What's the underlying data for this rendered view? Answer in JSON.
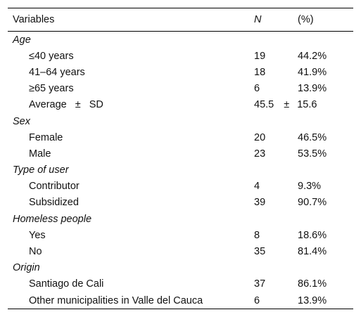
{
  "headers": {
    "variables": "Variables",
    "n": "N",
    "pct": "(%)"
  },
  "groups": [
    {
      "label": "Age",
      "rows": [
        {
          "label": "≤40 years",
          "n": "19",
          "pct": "44.2%"
        },
        {
          "label": "41–64 years",
          "n": "18",
          "pct": "41.9%"
        },
        {
          "label": "≥65 years",
          "n": "6",
          "pct": "13.9%"
        }
      ],
      "average_row": {
        "label_a": "Average",
        "pm_sign": "±",
        "label_b": "SD",
        "value": "45.5",
        "value_pm": "±",
        "value_sd": "15.6"
      }
    },
    {
      "label": "Sex",
      "rows": [
        {
          "label": "Female",
          "n": "20",
          "pct": "46.5%"
        },
        {
          "label": "Male",
          "n": "23",
          "pct": "53.5%"
        }
      ]
    },
    {
      "label": "Type of user",
      "rows": [
        {
          "label": "Contributor",
          "n": "4",
          "pct": "9.3%"
        },
        {
          "label": "Subsidized",
          "n": "39",
          "pct": "90.7%"
        }
      ]
    },
    {
      "label": "Homeless people",
      "rows": [
        {
          "label": "Yes",
          "n": "8",
          "pct": "18.6%"
        },
        {
          "label": "No",
          "n": "35",
          "pct": "81.4%"
        }
      ]
    },
    {
      "label": "Origin",
      "rows": [
        {
          "label": "Santiago de Cali",
          "n": "37",
          "pct": "86.1%"
        },
        {
          "label": "Other municipalities in Valle del Cauca",
          "n": "6",
          "pct": "13.9%"
        }
      ]
    }
  ]
}
